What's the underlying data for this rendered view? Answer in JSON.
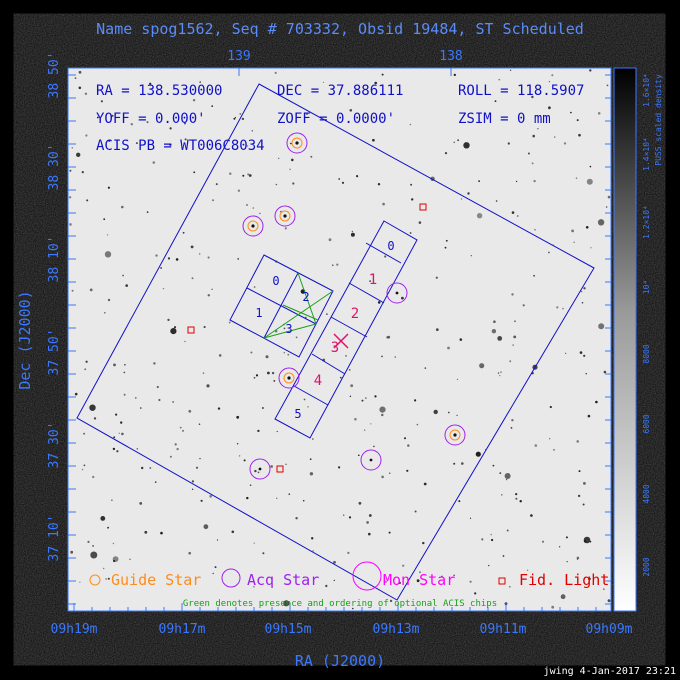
{
  "title": "Name spog1562, Seq # 703332, Obsid 19484, ST Scheduled",
  "colors": {
    "axis": "#3a78ff",
    "guide": "#ff8c1a",
    "acq": "#a020f0",
    "mon": "#ff00ff",
    "fid": "#e00000",
    "chip_blue": "#1010c8",
    "chip_red": "#e0106a",
    "optional_green": "#18a018",
    "background": "#000000"
  },
  "info": {
    "ra": "RA = 138.530000",
    "dec": "DEC = 37.886111",
    "roll": "ROLL = 118.5907",
    "yoff": "YOFF =   0.000'",
    "zoff": "ZOFF =  0.0000'",
    "zsim": "ZSIM = 0 mm",
    "acis": "ACIS PB = WT006C8034"
  },
  "axes": {
    "xlabel": "RA (J2000)",
    "ylabel": "Dec (J2000)",
    "bottom_ticks": [
      "09h19m",
      "09h17m",
      "09h15m",
      "09h13m",
      "09h11m",
      "09h09m"
    ],
    "top_ticks": [
      "139",
      "138"
    ],
    "left_ticks": [
      "38 50'",
      "38 30'",
      "38 10'",
      "37 50'",
      "37 30'",
      "37 10'"
    ]
  },
  "colorbar": {
    "title": "PUSS scaled density",
    "ticks": [
      "2000",
      "4000",
      "6000",
      "8000",
      "10⁴",
      "1.2×10⁴",
      "1.4×10⁴",
      "1.6×10⁴"
    ]
  },
  "chips": {
    "aciss": [
      "0",
      "1",
      "2",
      "3",
      "4",
      "5"
    ],
    "acisi": [
      "0",
      "1",
      "2",
      "3"
    ]
  },
  "legend": {
    "guide": "Guide Star",
    "acq": "Acq Star",
    "mon": "Mon Star",
    "fid": "Fid. Light",
    "note": "Green denotes presence and ordering of optional ACIS chips"
  },
  "footer": "jwing  4-Jan-2017 23:21",
  "markers": {
    "guide_acq_stars": 6,
    "acq_only_stars": 3,
    "fid_lights": 4
  }
}
